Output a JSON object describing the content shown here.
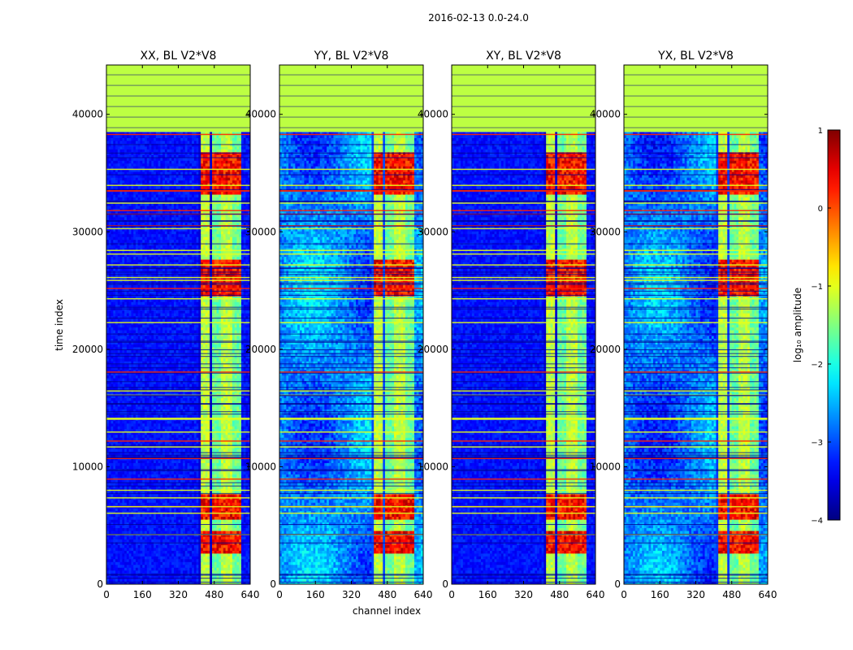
{
  "chart_data": {
    "type": "heatmap",
    "suptitle": "2016-02-13 0.0-24.0",
    "xlabel": "channel index",
    "ylabel": "time index",
    "xlim": [
      0,
      640
    ],
    "ylim": [
      0,
      44200
    ],
    "x_ticks": [
      0,
      160,
      320,
      480,
      640
    ],
    "x_tick_labels": [
      "0",
      "160",
      "320",
      "480",
      "640"
    ],
    "y_ticks": [
      0,
      10000,
      20000,
      30000,
      40000
    ],
    "y_tick_labels": [
      "0",
      "10000",
      "20000",
      "30000",
      "40000"
    ],
    "flagged_from_time": 38500,
    "strong_channel_range": [
      410,
      600
    ],
    "panels": [
      {
        "title": "XX, BL V2*V8",
        "base_level": -3.3,
        "texture": 0.4
      },
      {
        "title": "YY, BL V2*V8",
        "base_level": -2.7,
        "texture": 0.7
      },
      {
        "title": "XY, BL V2*V8",
        "base_level": -3.3,
        "texture": 0.4
      },
      {
        "title": "YX, BL V2*V8",
        "base_level": -2.8,
        "texture": 0.7
      }
    ],
    "colorbar": {
      "label": "log₁₀ amplitude",
      "range": [
        -4,
        1
      ],
      "ticks": [
        1,
        0,
        -1,
        -2,
        -3,
        -4
      ],
      "tick_labels": [
        "1",
        "0",
        "−1",
        "−2",
        "−3",
        "−4"
      ],
      "colormap": "jet"
    }
  }
}
